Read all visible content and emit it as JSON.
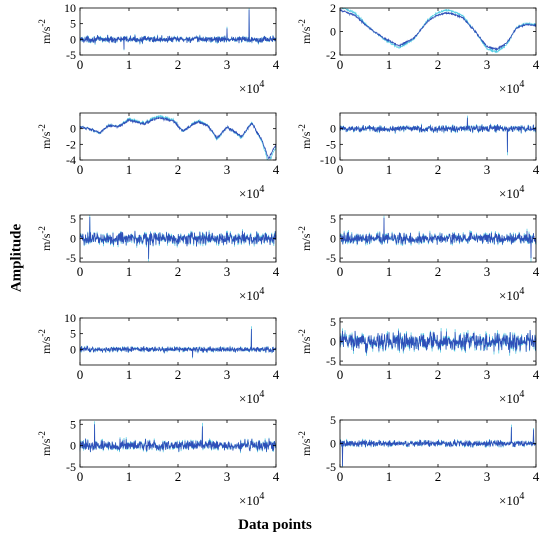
{
  "figure": {
    "xlabel": "Data points",
    "ylabel": "Amplitude",
    "panel_ylabel": "m/s",
    "panel_ylabel_exp": "-2",
    "x_multiplier_base": "×10",
    "x_multiplier_exp": "4",
    "colors": {
      "signal": "#2e4fb8",
      "signal_light": "#34c4de",
      "axis": "#000000"
    }
  },
  "chart_data": [
    {
      "type": "line",
      "name": "panel-1",
      "xlim": [
        0,
        40000
      ],
      "ylim": [
        -5,
        10
      ],
      "xticks": [
        0,
        1,
        2,
        3,
        4
      ],
      "yticks": [
        -5,
        0,
        5,
        10
      ],
      "x_tick_scale": 10000,
      "baseline": 0,
      "noise_amplitude": 1.5,
      "spikes": [
        {
          "x": 34500,
          "y": 9.5
        },
        {
          "x": 9000,
          "y": -3.2
        },
        {
          "x": 30000,
          "y": 3.5
        }
      ]
    },
    {
      "type": "line",
      "name": "panel-2",
      "xlim": [
        0,
        40000
      ],
      "ylim": [
        -2,
        2
      ],
      "xticks": [
        0,
        1,
        2,
        3,
        4
      ],
      "yticks": [
        -2,
        0,
        2
      ],
      "x_tick_scale": 10000,
      "noise_amplitude": 0.12,
      "trend": {
        "x": [
          0,
          3000,
          6000,
          9000,
          12000,
          15000,
          18000,
          20000,
          22000,
          25000,
          28000,
          30000,
          32000,
          34000,
          36000,
          38000,
          40000
        ],
        "y": [
          1.8,
          1.4,
          0.3,
          -0.6,
          -1.2,
          -0.6,
          0.9,
          1.4,
          1.6,
          1.2,
          -0.2,
          -1.3,
          -1.5,
          -1.0,
          0.3,
          0.6,
          0.5
        ]
      }
    },
    {
      "type": "line",
      "name": "panel-3",
      "xlim": [
        0,
        40000
      ],
      "ylim": [
        -4,
        2
      ],
      "xticks": [
        0,
        1,
        2,
        3,
        4
      ],
      "yticks": [
        -4,
        -2,
        0
      ],
      "x_tick_scale": 10000,
      "noise_amplitude": 0.25,
      "trend": {
        "x": [
          0,
          2000,
          4000,
          6000,
          8000,
          10000,
          13000,
          16000,
          19000,
          21000,
          24000,
          26000,
          28000,
          30000,
          33000,
          35000,
          37000,
          38500,
          40000
        ],
        "y": [
          0.2,
          0.0,
          -0.5,
          0.4,
          0.3,
          1.1,
          0.6,
          1.4,
          1.0,
          -0.3,
          0.9,
          0.4,
          -1.2,
          0.2,
          -1.0,
          0.7,
          -1.3,
          -3.8,
          -2.0
        ]
      }
    },
    {
      "type": "line",
      "name": "panel-4",
      "xlim": [
        0,
        40000
      ],
      "ylim": [
        -10,
        5
      ],
      "xticks": [
        0,
        1,
        2,
        3,
        4
      ],
      "yticks": [
        -10,
        -5,
        0
      ],
      "x_tick_scale": 10000,
      "baseline": 0,
      "noise_amplitude": 1.6,
      "spikes": [
        {
          "x": 34200,
          "y": -7.5
        },
        {
          "x": 26000,
          "y": 3.5
        }
      ]
    },
    {
      "type": "line",
      "name": "panel-5",
      "xlim": [
        0,
        40000
      ],
      "ylim": [
        -6,
        6
      ],
      "xticks": [
        0,
        1,
        2,
        3,
        4
      ],
      "yticks": [
        -5,
        0,
        5
      ],
      "x_tick_scale": 10000,
      "baseline": 0,
      "noise_amplitude": 2.4,
      "spikes": [
        {
          "x": 2000,
          "y": 5.5
        },
        {
          "x": 14000,
          "y": -5.2
        }
      ]
    },
    {
      "type": "line",
      "name": "panel-6",
      "xlim": [
        0,
        40000
      ],
      "ylim": [
        -6,
        6
      ],
      "xticks": [
        0,
        1,
        2,
        3,
        4
      ],
      "yticks": [
        -5,
        0,
        5
      ],
      "x_tick_scale": 10000,
      "baseline": 0,
      "noise_amplitude": 2.0,
      "spikes": [
        {
          "x": 9000,
          "y": 5.3
        },
        {
          "x": 39000,
          "y": -5.0
        }
      ]
    },
    {
      "type": "line",
      "name": "panel-7",
      "xlim": [
        0,
        40000
      ],
      "ylim": [
        -5,
        10
      ],
      "xticks": [
        0,
        1,
        2,
        3,
        4
      ],
      "yticks": [
        0,
        5,
        10
      ],
      "x_tick_scale": 10000,
      "baseline": 0,
      "noise_amplitude": 1.2,
      "spikes": [
        {
          "x": 35000,
          "y": 6.5
        },
        {
          "x": 23000,
          "y": -2.5
        }
      ]
    },
    {
      "type": "line",
      "name": "panel-8",
      "xlim": [
        0,
        40000
      ],
      "ylim": [
        -6,
        6
      ],
      "xticks": [
        0,
        1,
        2,
        3,
        4
      ],
      "yticks": [
        -5,
        0,
        5
      ],
      "x_tick_scale": 10000,
      "baseline": 0,
      "noise_amplitude": 3.2,
      "spikes": []
    },
    {
      "type": "line",
      "name": "panel-9",
      "xlim": [
        0,
        40000
      ],
      "ylim": [
        -5,
        6
      ],
      "xticks": [
        0,
        1,
        2,
        3,
        4
      ],
      "yticks": [
        -5,
        0,
        5
      ],
      "x_tick_scale": 10000,
      "baseline": 0,
      "noise_amplitude": 1.8,
      "spikes": [
        {
          "x": 3000,
          "y": 5.0
        },
        {
          "x": 25000,
          "y": 4.5
        }
      ]
    },
    {
      "type": "line",
      "name": "panel-10",
      "xlim": [
        0,
        40000
      ],
      "ylim": [
        -5,
        5
      ],
      "xticks": [
        0,
        1,
        2,
        3,
        4
      ],
      "yticks": [
        -5,
        0,
        5
      ],
      "x_tick_scale": 10000,
      "baseline": 0,
      "noise_amplitude": 1.0,
      "spikes": [
        {
          "x": 500,
          "y": -4.8
        },
        {
          "x": 35000,
          "y": 3.5
        },
        {
          "x": 39500,
          "y": 3.0
        }
      ]
    }
  ]
}
